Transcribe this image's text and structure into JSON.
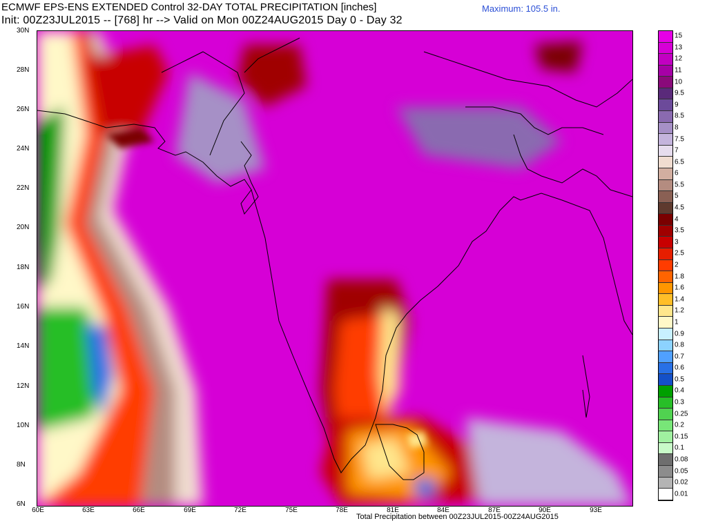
{
  "header": {
    "line1": "ECMWF EPS-ENS EXTENDED Control 32-DAY TOTAL PRECIPITATION [inches]",
    "line2": "Init: 00Z23JUL2015 -- [768] hr --> Valid on Mon 00Z24AUG2015  Day 0 - Day 32",
    "maximum": "Maximum: 105.5 in."
  },
  "footer": "Total Precipitation between 00Z23JUL2015-00Z24AUG2015",
  "map": {
    "lat_labels": [
      "30N",
      "28N",
      "26N",
      "24N",
      "22N",
      "20N",
      "18N",
      "16N",
      "14N",
      "12N",
      "10N",
      "8N",
      "6N"
    ],
    "lon_labels": [
      "60E",
      "63E",
      "66E",
      "69E",
      "72E",
      "75E",
      "78E",
      "81E",
      "84E",
      "87E",
      "90E",
      "93E"
    ]
  },
  "legend": {
    "items": [
      {
        "label": "15",
        "color": "#e600e6"
      },
      {
        "label": "13",
        "color": "#d600d6"
      },
      {
        "label": "12",
        "color": "#c200c2"
      },
      {
        "label": "11",
        "color": "#a600a6"
      },
      {
        "label": "10",
        "color": "#8a0a7a"
      },
      {
        "label": "9.5",
        "color": "#5a2a7a"
      },
      {
        "label": "9",
        "color": "#6c4a9a"
      },
      {
        "label": "8.5",
        "color": "#8a6ab0"
      },
      {
        "label": "8",
        "color": "#a690c6"
      },
      {
        "label": "7.5",
        "color": "#c4b4dc"
      },
      {
        "label": "7",
        "color": "#e6dced"
      },
      {
        "label": "6.5",
        "color": "#f0dcd0"
      },
      {
        "label": "6",
        "color": "#d2aea0"
      },
      {
        "label": "5.5",
        "color": "#b48c80"
      },
      {
        "label": "5",
        "color": "#8a6054"
      },
      {
        "label": "4.5",
        "color": "#5e3a2e"
      },
      {
        "label": "4",
        "color": "#7a0000"
      },
      {
        "label": "3.5",
        "color": "#a00000"
      },
      {
        "label": "3",
        "color": "#c80000"
      },
      {
        "label": "2.5",
        "color": "#e61e00"
      },
      {
        "label": "2",
        "color": "#ff3c00"
      },
      {
        "label": "1.8",
        "color": "#ff6400"
      },
      {
        "label": "1.6",
        "color": "#ff9600"
      },
      {
        "label": "1.4",
        "color": "#ffbe28"
      },
      {
        "label": "1.2",
        "color": "#ffe68c"
      },
      {
        "label": "1",
        "color": "#fff8c8"
      },
      {
        "label": "0.9",
        "color": "#c8f0ff"
      },
      {
        "label": "0.8",
        "color": "#8cd2ff"
      },
      {
        "label": "0.7",
        "color": "#50a0ff"
      },
      {
        "label": "0.6",
        "color": "#2870e6"
      },
      {
        "label": "0.5",
        "color": "#1450c8"
      },
      {
        "label": "0.4",
        "color": "#00a000"
      },
      {
        "label": "0.3",
        "color": "#28be28"
      },
      {
        "label": "0.25",
        "color": "#50d250"
      },
      {
        "label": "0.2",
        "color": "#78e678"
      },
      {
        "label": "0.15",
        "color": "#a0f0a0"
      },
      {
        "label": "0.1",
        "color": "#c8fac8"
      },
      {
        "label": "0.08",
        "color": "#6e6e6e"
      },
      {
        "label": "0.05",
        "color": "#8c8c8c"
      },
      {
        "label": "0.02",
        "color": "#b4b4b4"
      },
      {
        "label": "0.01",
        "color": "#ffffff"
      }
    ]
  }
}
